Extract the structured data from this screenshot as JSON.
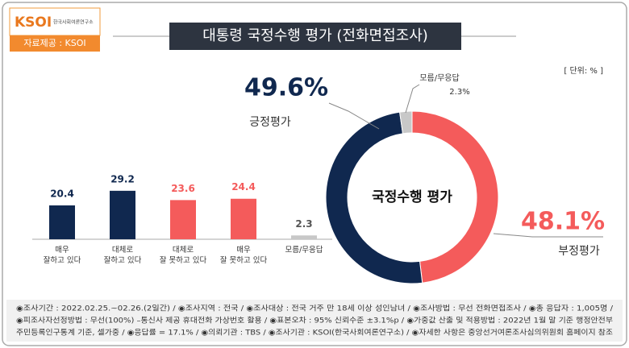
{
  "header": {
    "logo": "KSOI",
    "logo_sub": "한국사회여론연구소",
    "source": "자료제공 : KSOI",
    "title": "대통령 국정수행 평가 (전화면접조사)",
    "unit": "[ 단위: % ]"
  },
  "chart_data": [
    {
      "type": "bar",
      "categories": [
        "매우\n잘하고 있다",
        "대체로\n잘하고 있다",
        "대체로\n잘 못하고 있다",
        "매우\n잘 못하고 있다",
        "모름/무응답"
      ],
      "values": [
        20.4,
        29.2,
        23.6,
        24.4,
        2.3
      ],
      "colors": [
        "#10284f",
        "#10284f",
        "#f45b5b",
        "#f45b5b",
        "#c8c8c8"
      ]
    },
    {
      "type": "donut",
      "center_label": "국정수행 평가",
      "categories": [
        "긍정평가",
        "부정평가",
        "모름/무응답"
      ],
      "values": [
        49.6,
        48.1,
        2.3
      ],
      "value_labels": [
        "49.6%",
        "48.1%",
        "2.3%"
      ],
      "colors": [
        "#10284f",
        "#f45b5b",
        "#c8c8c8"
      ]
    }
  ],
  "footer": {
    "notes": [
      "◉조사기간 : 2022.02.25.~02.26.(2일간) / ◉조사지역 : 전국 / ◉조사대상 : 전국 거주 만 18세 이상 성인남녀 / ◉조사방법 : 무선 전화면접조사 / ◉총 응답자 : 1,005명 /",
      "◉피조사자선정방법 : 무선(100%) –통신사 제공 휴대전화 가상번호 활용 / ◉표본오차 : 95% 신뢰수준 ±3.1%p / ◉가중값 산출 및 적용방법 : 2022년 1월 말 기준 행정안전부",
      "주민등록인구통계 기준, 셀가중 / ◉응답률 = 17.1% / ◉의뢰기관 : TBS / ◉조사기관 : KSOI(한국사회여론연구소) / ◉자세한 사항은 중앙선거여론조사심의위원회 홈페이지 참조"
    ]
  }
}
